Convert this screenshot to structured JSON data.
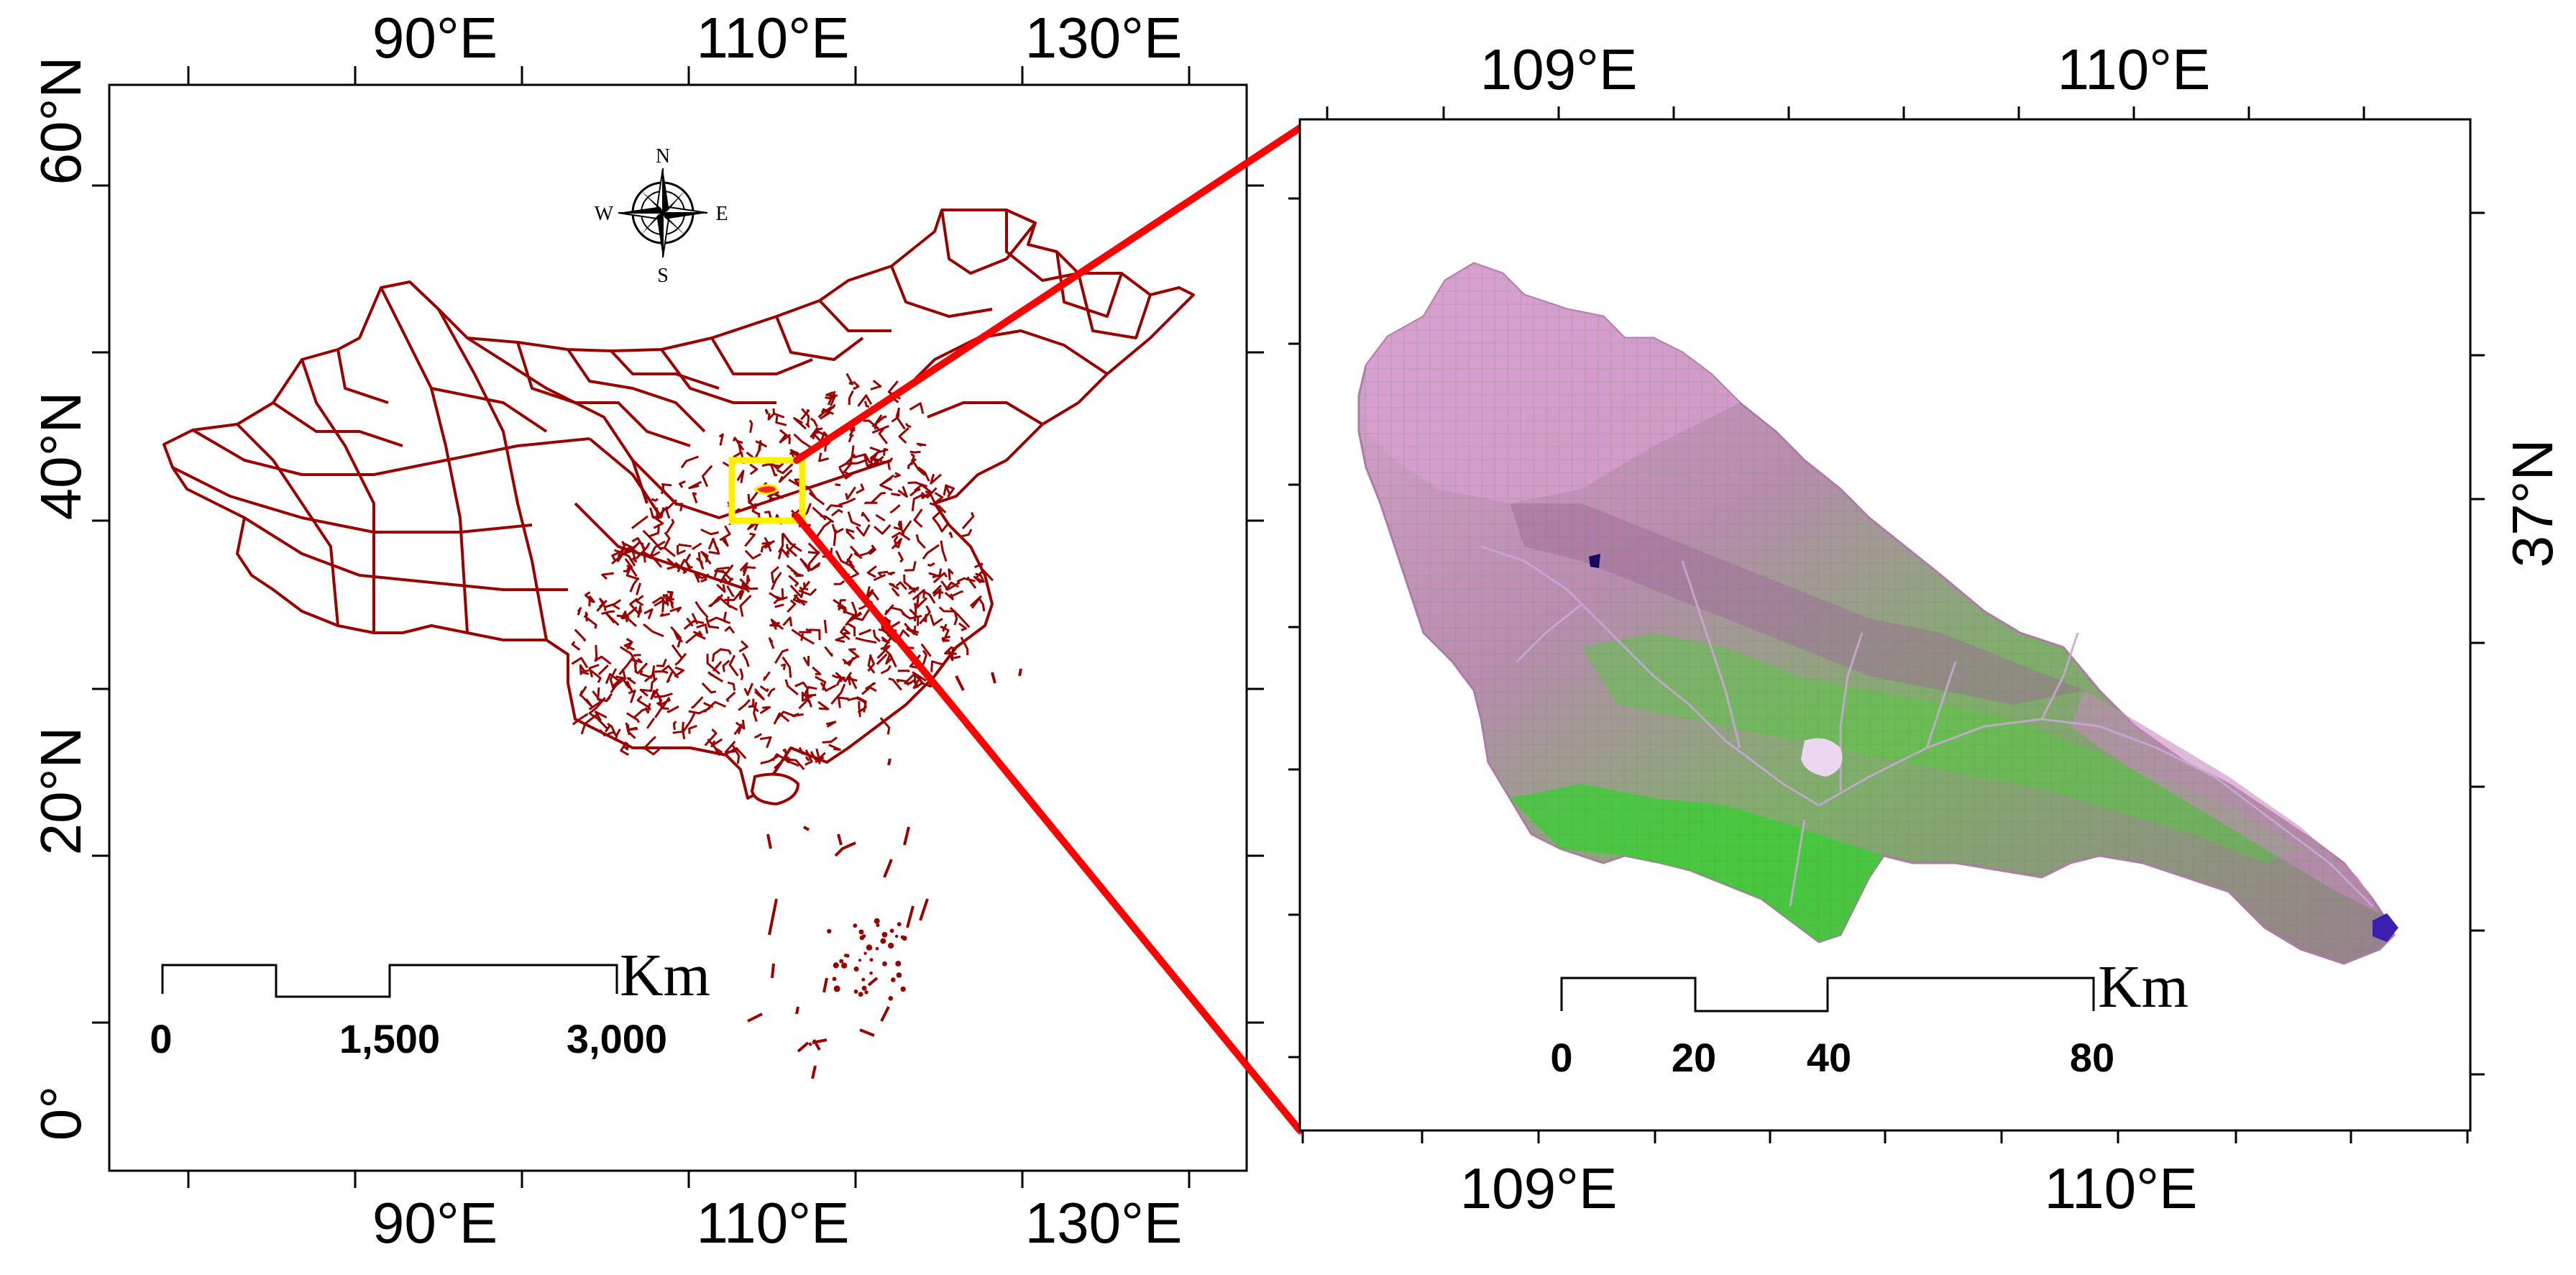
{
  "left_map": {
    "top_lon_labels": [
      "90°E",
      "110°E",
      "130°E"
    ],
    "bottom_lon_labels": [
      "90°E",
      "110°E",
      "130°E"
    ],
    "lat_labels": [
      "60°N",
      "40°N",
      "20°N",
      "0°"
    ],
    "compass": {
      "n": "N",
      "s": "S",
      "e": "E",
      "w": "W"
    },
    "scale_bar": {
      "unit": "Km",
      "ticks": [
        "0",
        "1,500",
        "3,000"
      ]
    },
    "boundary_color": "#9b0000",
    "study_area_box_color": "#ffef00"
  },
  "right_map": {
    "top_lon_labels": [
      "109°E",
      "110°E"
    ],
    "bottom_lon_labels": [
      "109°E",
      "110°E"
    ],
    "lat_labels": [
      "37°N"
    ],
    "scale_bar": {
      "unit": "Km",
      "ticks": [
        "0",
        "20",
        "40",
        "80"
      ]
    },
    "imagery_colors": {
      "pink": "#d98ec9",
      "green": "#4fcf3a",
      "blue": "#3a1fb0"
    }
  },
  "connector_color": "#ff0000"
}
